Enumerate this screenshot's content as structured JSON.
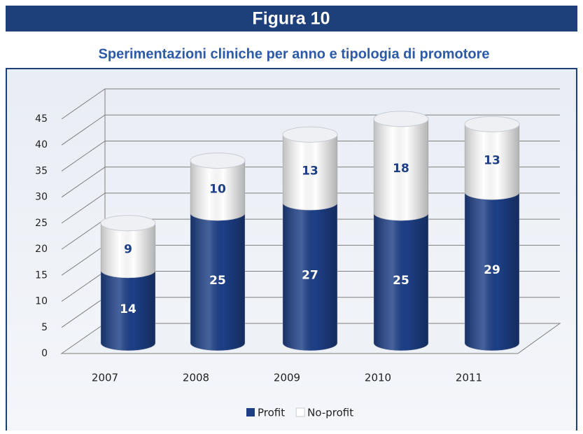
{
  "chart_data": {
    "type": "stacked-cylinder",
    "figure_label": "Figura 10",
    "title": "Sperimentazioni cliniche per anno e tipologia di promotore",
    "categories": [
      "2007",
      "2008",
      "2009",
      "2010",
      "2011"
    ],
    "series": [
      {
        "name": "Profit",
        "color": "#1d3f86",
        "label_color": "#ffffff",
        "values": [
          14,
          25,
          27,
          25,
          29
        ]
      },
      {
        "name": "No-profit",
        "color": "#ffffff",
        "label_color": "#1d3f86",
        "values": [
          9,
          10,
          13,
          18,
          13
        ]
      }
    ],
    "ylim": [
      0,
      45
    ],
    "yticks": [
      0,
      5,
      10,
      15,
      20,
      25,
      30,
      35,
      40,
      45
    ],
    "grid": true,
    "legend": "bottom"
  }
}
